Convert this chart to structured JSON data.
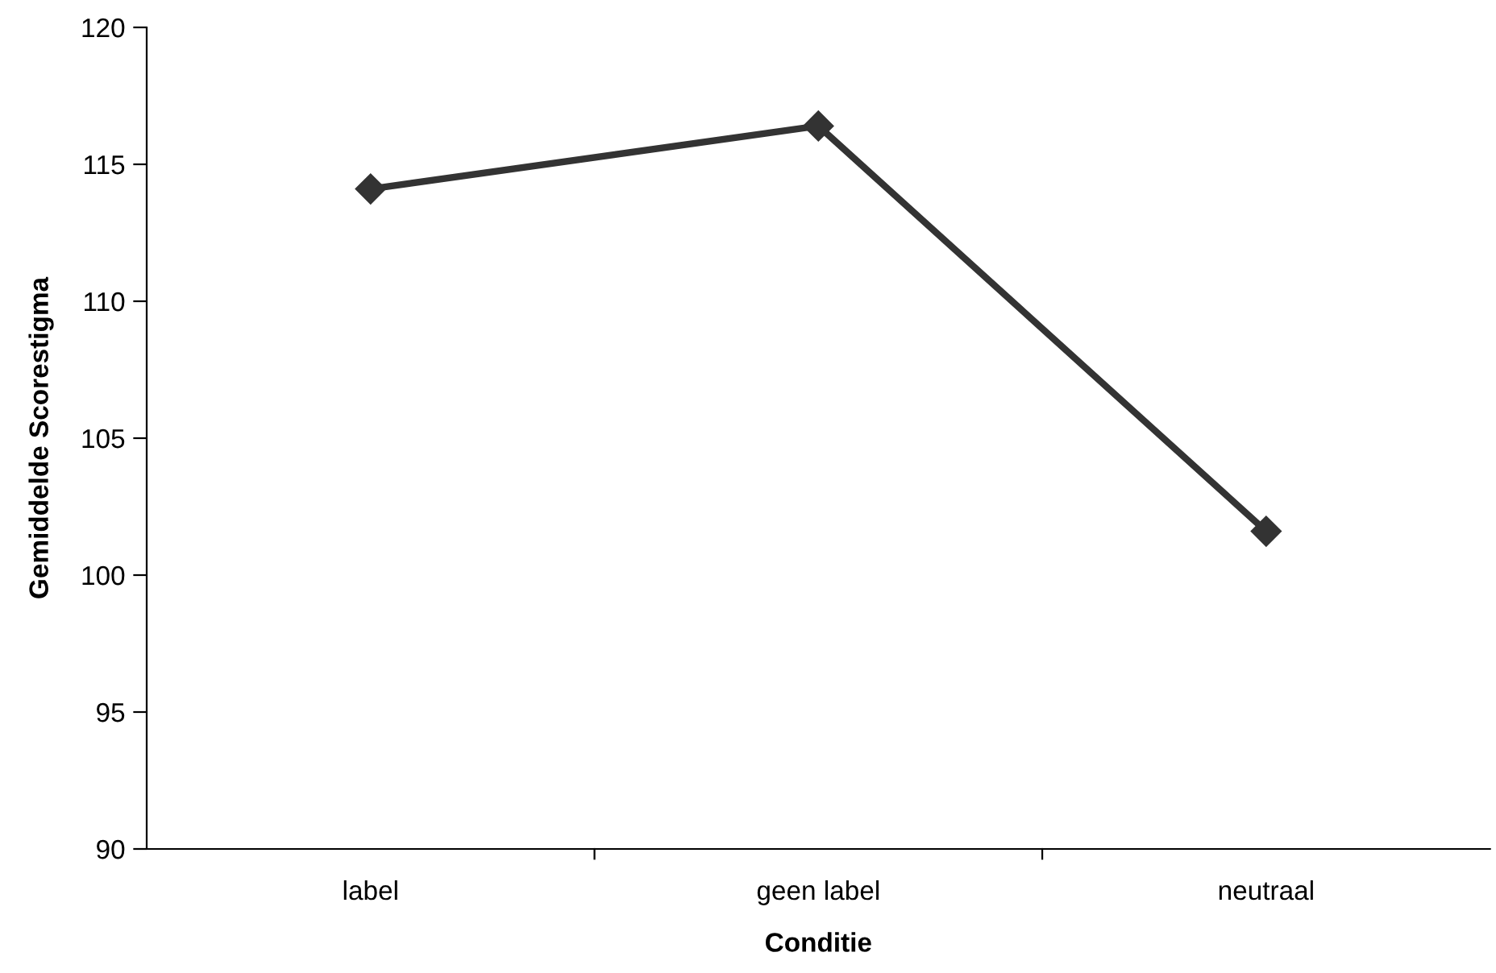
{
  "chart_data": {
    "type": "line",
    "xlabel": "Conditie",
    "ylabel": "Gemiddelde Scorestigma",
    "categories": [
      "label",
      "geen label",
      "neutraal"
    ],
    "series": [
      {
        "color": "#333333",
        "values": [
          114.1,
          116.4,
          101.6
        ]
      }
    ],
    "ylim": [
      90,
      120
    ],
    "yticks": [
      90,
      95,
      100,
      105,
      110,
      115,
      120
    ],
    "grid": false,
    "legend": false,
    "marker": "diamond",
    "line_style": "solid"
  }
}
